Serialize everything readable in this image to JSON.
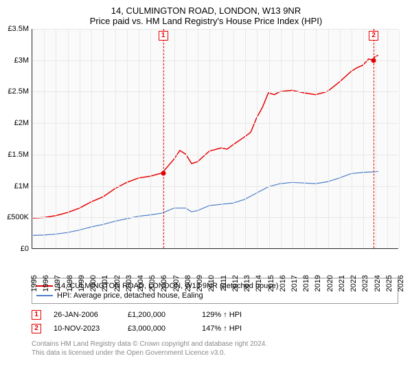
{
  "title": "14, CULMINGTON ROAD, LONDON, W13 9NR",
  "subtitle": "Price paid vs. HM Land Registry's House Price Index (HPI)",
  "chart": {
    "type": "line",
    "background_color": "#fafafa",
    "grid_color": "#e8e8e8",
    "axis_color": "#333333",
    "xlim": [
      1995,
      2026
    ],
    "ylim": [
      0,
      3500000
    ],
    "yticks": [
      {
        "v": 0,
        "label": "£0"
      },
      {
        "v": 500000,
        "label": "£500K"
      },
      {
        "v": 1000000,
        "label": "£1M"
      },
      {
        "v": 1500000,
        "label": "£1.5M"
      },
      {
        "v": 2000000,
        "label": "£2M"
      },
      {
        "v": 2500000,
        "label": "£2.5M"
      },
      {
        "v": 3000000,
        "label": "£3M"
      },
      {
        "v": 3500000,
        "label": "£3.5M"
      }
    ],
    "xticks": [
      1995,
      1996,
      1997,
      1998,
      1999,
      2000,
      2001,
      2002,
      2003,
      2004,
      2005,
      2006,
      2007,
      2008,
      2009,
      2010,
      2011,
      2012,
      2013,
      2014,
      2015,
      2016,
      2017,
      2018,
      2019,
      2020,
      2021,
      2022,
      2023,
      2024,
      2025,
      2026
    ],
    "series": [
      {
        "name": "14, CULMINGTON ROAD, LONDON, W13 9NR (detached house)",
        "color": "#e60000",
        "line_width": 1.5,
        "points": [
          [
            1995,
            480000
          ],
          [
            1996,
            490000
          ],
          [
            1997,
            520000
          ],
          [
            1998,
            570000
          ],
          [
            1999,
            640000
          ],
          [
            2000,
            740000
          ],
          [
            2001,
            820000
          ],
          [
            2002,
            950000
          ],
          [
            2003,
            1050000
          ],
          [
            2004,
            1120000
          ],
          [
            2005,
            1150000
          ],
          [
            2006,
            1200000
          ],
          [
            2007,
            1420000
          ],
          [
            2007.5,
            1560000
          ],
          [
            2008,
            1500000
          ],
          [
            2008.5,
            1350000
          ],
          [
            2009,
            1380000
          ],
          [
            2010,
            1550000
          ],
          [
            2011,
            1600000
          ],
          [
            2011.5,
            1580000
          ],
          [
            2012,
            1650000
          ],
          [
            2013,
            1780000
          ],
          [
            2013.5,
            1850000
          ],
          [
            2014,
            2080000
          ],
          [
            2014.5,
            2250000
          ],
          [
            2015,
            2480000
          ],
          [
            2015.5,
            2450000
          ],
          [
            2016,
            2500000
          ],
          [
            2017,
            2520000
          ],
          [
            2018,
            2480000
          ],
          [
            2019,
            2450000
          ],
          [
            2020,
            2500000
          ],
          [
            2021,
            2650000
          ],
          [
            2022,
            2820000
          ],
          [
            2022.5,
            2880000
          ],
          [
            2023,
            2920000
          ],
          [
            2023.5,
            3020000
          ],
          [
            2023.85,
            3000000
          ],
          [
            2024,
            3050000
          ],
          [
            2024.3,
            3080000
          ]
        ]
      },
      {
        "name": "HPI: Average price, detached house, Ealing",
        "color": "#4a7dc9",
        "line_width": 1.2,
        "points": [
          [
            1995,
            205000
          ],
          [
            1996,
            210000
          ],
          [
            1997,
            225000
          ],
          [
            1998,
            250000
          ],
          [
            1999,
            290000
          ],
          [
            2000,
            340000
          ],
          [
            2001,
            380000
          ],
          [
            2002,
            430000
          ],
          [
            2003,
            470000
          ],
          [
            2004,
            510000
          ],
          [
            2005,
            530000
          ],
          [
            2006,
            560000
          ],
          [
            2007,
            640000
          ],
          [
            2008,
            640000
          ],
          [
            2008.5,
            580000
          ],
          [
            2009,
            600000
          ],
          [
            2010,
            680000
          ],
          [
            2011,
            700000
          ],
          [
            2012,
            720000
          ],
          [
            2013,
            780000
          ],
          [
            2014,
            880000
          ],
          [
            2015,
            980000
          ],
          [
            2016,
            1030000
          ],
          [
            2017,
            1050000
          ],
          [
            2018,
            1040000
          ],
          [
            2019,
            1030000
          ],
          [
            2020,
            1060000
          ],
          [
            2021,
            1120000
          ],
          [
            2022,
            1190000
          ],
          [
            2023,
            1210000
          ],
          [
            2024,
            1220000
          ],
          [
            2024.3,
            1225000
          ]
        ]
      }
    ],
    "sale_markers": [
      {
        "n": "1",
        "x": 2006.07,
        "color": "#e60000",
        "point_y": 1200000
      },
      {
        "n": "2",
        "x": 2023.86,
        "color": "#e60000",
        "point_y": 3000000
      }
    ]
  },
  "legend": [
    {
      "color": "#e60000",
      "label": "14, CULMINGTON ROAD, LONDON, W13 9NR (detached house)"
    },
    {
      "color": "#4a7dc9",
      "label": "HPI: Average price, detached house, Ealing"
    }
  ],
  "sales": [
    {
      "n": "1",
      "color": "#e60000",
      "date": "26-JAN-2006",
      "price": "£1,200,000",
      "delta": "129% ↑ HPI"
    },
    {
      "n": "2",
      "color": "#e60000",
      "date": "10-NOV-2023",
      "price": "£3,000,000",
      "delta": "147% ↑ HPI"
    }
  ],
  "footer_lines": [
    "Contains HM Land Registry data © Crown copyright and database right 2024.",
    "This data is licensed under the Open Government Licence v3.0."
  ]
}
